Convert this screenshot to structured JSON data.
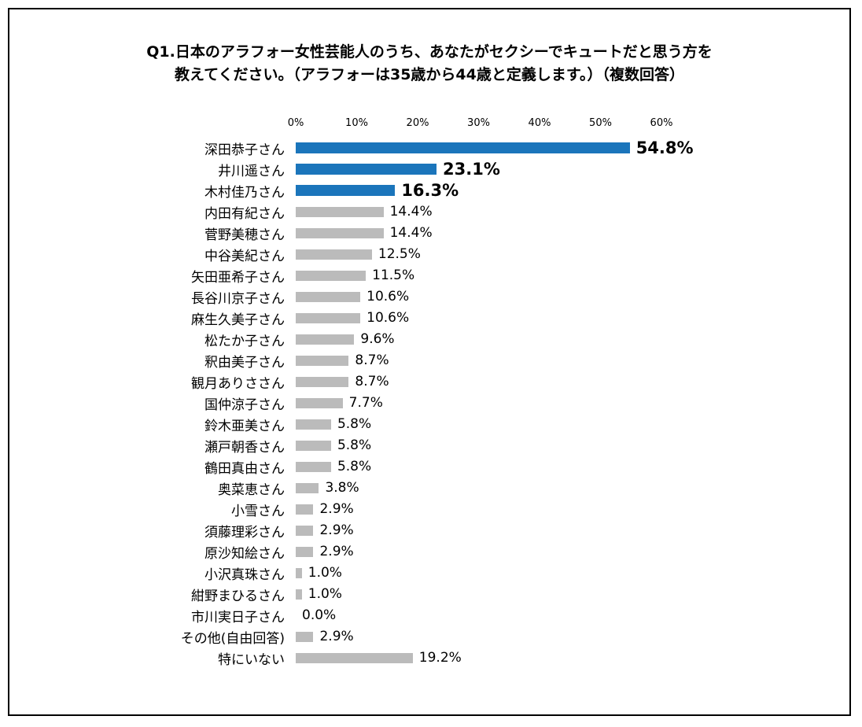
{
  "chart_data": {
    "type": "bar",
    "orientation": "horizontal",
    "title": "Q1.日本のアラフォー女性芸能人のうち、あなたがセクシーでキュートだと思う方を\n教えてください。（アラフォーは35歳から44歳と定義します。）（複数回答）",
    "categories": [
      "深田恭子さん",
      "井川遥さん",
      "木村佳乃さん",
      "内田有紀さん",
      "菅野美穂さん",
      "中谷美紀さん",
      "矢田亜希子さん",
      "長谷川京子さん",
      "麻生久美子さん",
      "松たか子さん",
      "釈由美子さん",
      "観月ありささん",
      "国仲涼子さん",
      "鈴木亜美さん",
      "瀬戸朝香さん",
      "鶴田真由さん",
      "奥菜恵さん",
      "小雪さん",
      "須藤理彩さん",
      "原沙知絵さん",
      "小沢真珠さん",
      "紺野まひるさん",
      "市川実日子さん",
      "その他(自由回答)",
      "特にいない"
    ],
    "values": [
      54.8,
      23.1,
      16.3,
      14.4,
      14.4,
      12.5,
      11.5,
      10.6,
      10.6,
      9.6,
      8.7,
      8.7,
      7.7,
      5.8,
      5.8,
      5.8,
      3.8,
      2.9,
      2.9,
      2.9,
      1.0,
      1.0,
      0.0,
      2.9,
      19.2
    ],
    "value_labels": [
      "54.8%",
      "23.1%",
      "16.3%",
      "14.4%",
      "14.4%",
      "12.5%",
      "11.5%",
      "10.6%",
      "10.6%",
      "9.6%",
      "8.7%",
      "8.7%",
      "7.7%",
      "5.8%",
      "5.8%",
      "5.8%",
      "3.8%",
      "2.9%",
      "2.9%",
      "2.9%",
      "1.0%",
      "1.0%",
      "0.0%",
      "2.9%",
      "19.2%"
    ],
    "highlight_count": 3,
    "x_ticks": [
      "0%",
      "10%",
      "20%",
      "30%",
      "40%",
      "50%",
      "60%"
    ],
    "xlim": [
      0,
      60
    ],
    "grid": false,
    "legend": "none",
    "colors": {
      "highlight": "#1B75BB",
      "normal": "#BBBBBB",
      "text": "#000000"
    }
  }
}
